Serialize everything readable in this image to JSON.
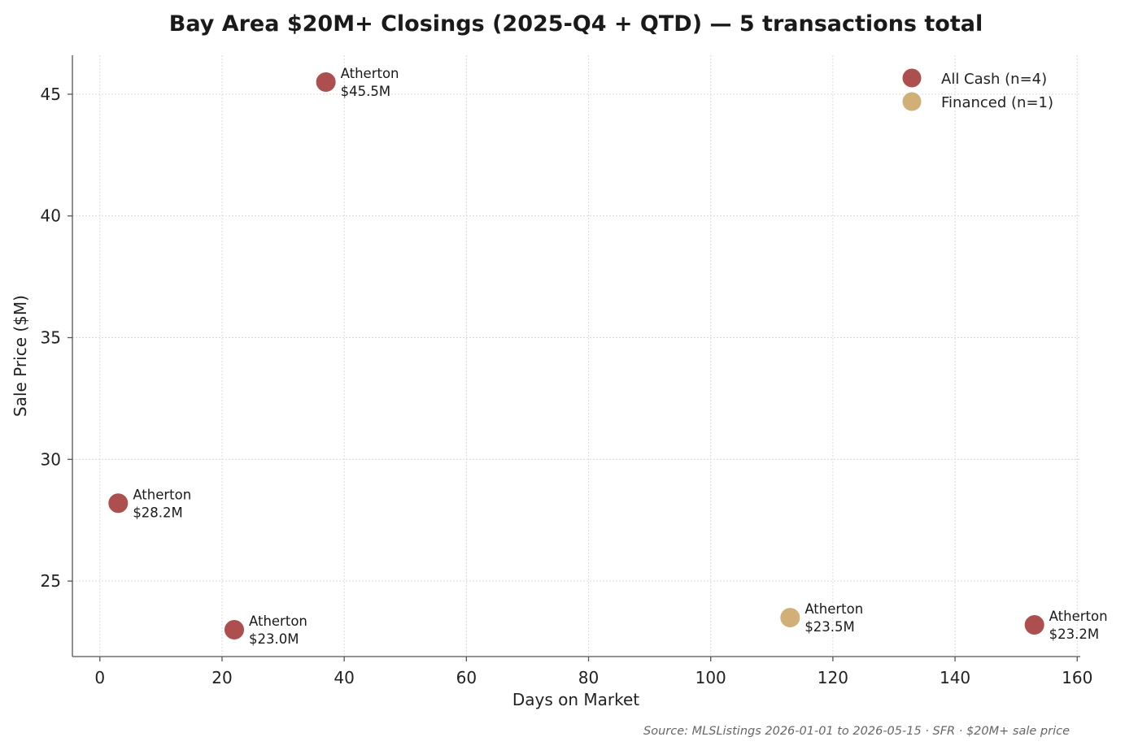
{
  "chart_data": {
    "type": "scatter",
    "title": "Bay Area $20M+ Closings (2025-Q4 + QTD) — 5 transactions total",
    "xlabel": "Days on Market",
    "ylabel": "Sale Price ($M)",
    "xlim": [
      -4.5,
      160.5
    ],
    "ylim": [
      21.9,
      46.6
    ],
    "x_ticks": [
      0,
      20,
      40,
      60,
      80,
      100,
      120,
      140,
      160
    ],
    "y_ticks": [
      25,
      30,
      35,
      40,
      45
    ],
    "grid": true,
    "legend_position": "top-right",
    "series": [
      {
        "name": "All Cash (n=4)",
        "color": "#ad4f4f",
        "points": [
          {
            "x": 37,
            "y": 45.5,
            "city": "Atherton",
            "price_label": "$45.5M"
          },
          {
            "x": 3,
            "y": 28.2,
            "city": "Atherton",
            "price_label": "$28.2M"
          },
          {
            "x": 22,
            "y": 23.0,
            "city": "Atherton",
            "price_label": "$23.0M"
          },
          {
            "x": 153,
            "y": 23.2,
            "city": "Atherton",
            "price_label": "$23.2M"
          }
        ]
      },
      {
        "name": "Financed (n=1)",
        "color": "#d1b077",
        "points": [
          {
            "x": 113,
            "y": 23.5,
            "city": "Atherton",
            "price_label": "$23.5M"
          }
        ]
      }
    ],
    "source": "Source: MLSListings 2026-01-01 to 2026-05-15 · SFR · $20M+ sale price"
  }
}
